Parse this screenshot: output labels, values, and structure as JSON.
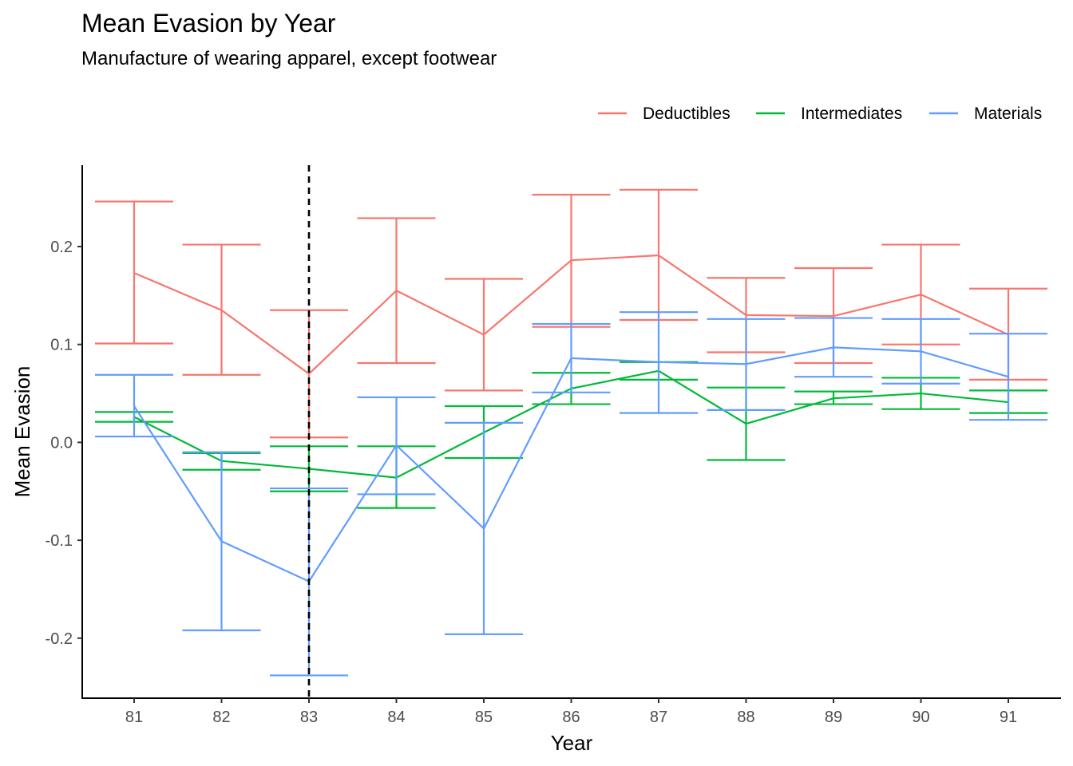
{
  "chart_data": {
    "type": "line",
    "title": "Mean Evasion by Year",
    "subtitle": "Manufacture of wearing apparel, except footwear",
    "xlabel": "Year",
    "ylabel": "Mean Evasion",
    "categories": [
      "81",
      "82",
      "83",
      "84",
      "85",
      "86",
      "87",
      "88",
      "89",
      "90",
      "91"
    ],
    "ylim": [
      -0.26,
      0.28
    ],
    "yticks": [
      -0.2,
      -0.1,
      0.0,
      0.1,
      0.2
    ],
    "ytick_labels": [
      "-0.2",
      "-0.1",
      "0.0",
      "0.1",
      "0.2"
    ],
    "vline": {
      "x": "83",
      "style": "dashed",
      "color": "#000000"
    },
    "legend_position": "top-right",
    "grid": false,
    "series": [
      {
        "name": "Deductibles",
        "color": "#F8766D",
        "values": [
          0.173,
          0.135,
          0.07,
          0.155,
          0.11,
          0.186,
          0.191,
          0.13,
          0.129,
          0.151,
          0.11
        ],
        "lower": [
          0.101,
          0.069,
          0.005,
          0.081,
          0.053,
          0.118,
          0.125,
          0.092,
          0.081,
          0.1,
          0.064
        ],
        "upper": [
          0.246,
          0.202,
          0.135,
          0.229,
          0.167,
          0.253,
          0.258,
          0.168,
          0.178,
          0.202,
          0.157
        ]
      },
      {
        "name": "Intermediates",
        "color": "#00BA38",
        "values": [
          0.026,
          -0.019,
          -0.027,
          -0.036,
          0.01,
          0.055,
          0.073,
          0.019,
          0.045,
          0.05,
          0.041
        ],
        "lower": [
          0.021,
          -0.028,
          -0.05,
          -0.067,
          -0.016,
          0.039,
          0.064,
          -0.018,
          0.039,
          0.034,
          0.03
        ],
        "upper": [
          0.031,
          -0.011,
          -0.004,
          -0.004,
          0.037,
          0.071,
          0.082,
          0.056,
          0.052,
          0.066,
          0.053
        ]
      },
      {
        "name": "Materials",
        "color": "#619CFF",
        "values": [
          0.037,
          -0.101,
          -0.142,
          -0.003,
          -0.088,
          0.086,
          0.082,
          0.08,
          0.097,
          0.093,
          0.067
        ],
        "lower": [
          0.006,
          -0.192,
          -0.238,
          -0.053,
          -0.196,
          0.051,
          0.03,
          0.033,
          0.067,
          0.06,
          0.023
        ],
        "upper": [
          0.069,
          -0.01,
          -0.047,
          0.046,
          0.02,
          0.121,
          0.133,
          0.126,
          0.127,
          0.126,
          0.111
        ]
      }
    ]
  }
}
